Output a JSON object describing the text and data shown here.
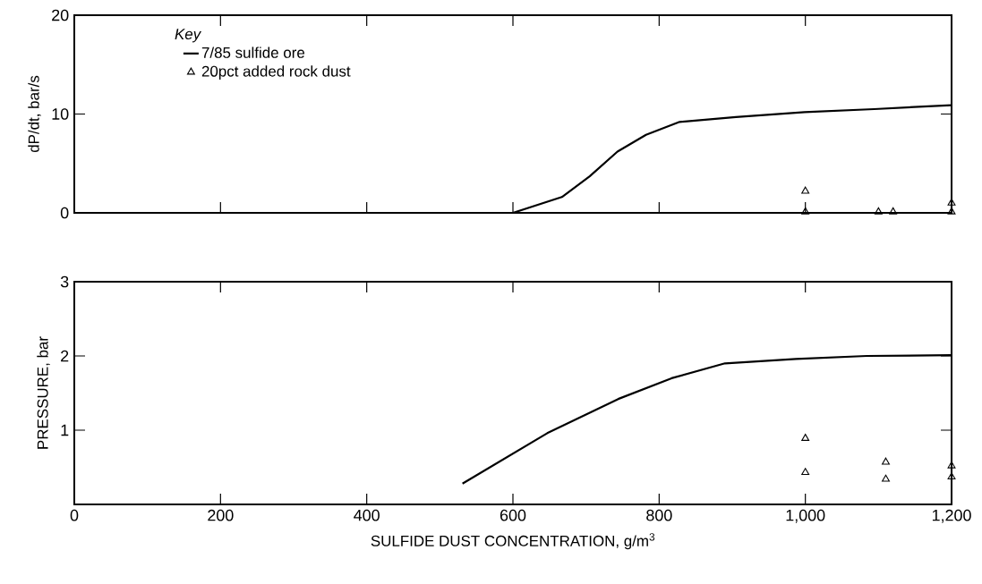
{
  "chart_data": [
    {
      "type": "line",
      "ylabel": "dP/dt, bar/s",
      "legend_title": "Key",
      "legend": "top left",
      "tick_labels": "y",
      "xlim": [
        0,
        1200
      ],
      "xticks": [
        0,
        200,
        400,
        600,
        800,
        1000,
        1200
      ],
      "ylim": [
        0,
        20
      ],
      "yticks": [
        0,
        10,
        20
      ],
      "series": [
        {
          "name": "7/85 sulfide ore",
          "type": "line",
          "color": "#000000",
          "x": [
            0,
            600,
            667,
            705,
            743,
            782,
            828,
            905,
            999,
            1094,
            1200
          ],
          "values": [
            0,
            0,
            1.6,
            3.7,
            6.2,
            7.9,
            9.2,
            9.7,
            10.2,
            10.5,
            10.9
          ]
        },
        {
          "name": "20pct added rock dust",
          "type": "scatter",
          "marker": "triangle",
          "color": "#000000",
          "x": [
            1000,
            1000,
            1100,
            1120,
            1200,
            1200
          ],
          "values": [
            2.2,
            0.1,
            0.1,
            0.1,
            1.0,
            0.1
          ]
        }
      ]
    },
    {
      "type": "line",
      "ylabel": "PRESSURE, bar",
      "xlabel": "SULFIDE DUST CONCENTRATION, g/m$^{3}$",
      "xlim": [
        0,
        1200
      ],
      "xticks": [
        0,
        200,
        400,
        600,
        800,
        {
          "value": 1000,
          "label": "1,000"
        },
        {
          "value": 1200,
          "label": "1,200"
        }
      ],
      "ylim": [
        0,
        3
      ],
      "yticks": [
        1,
        2,
        3
      ],
      "series": [
        {
          "type": "line",
          "color": "#000000",
          "x": [
            531,
            647,
            744,
            817,
            890,
            987,
            1084,
            1199
          ],
          "values": [
            0.28,
            0.96,
            1.42,
            1.7,
            1.9,
            1.96,
            2.0,
            2.01
          ]
        },
        {
          "type": "scatter",
          "marker": "triangle",
          "color": "#000000",
          "x": [
            1000,
            1000,
            1110,
            1110,
            1200,
            1200
          ],
          "values": [
            0.89,
            0.43,
            0.57,
            0.34,
            0.52,
            0.37
          ]
        }
      ]
    }
  ]
}
